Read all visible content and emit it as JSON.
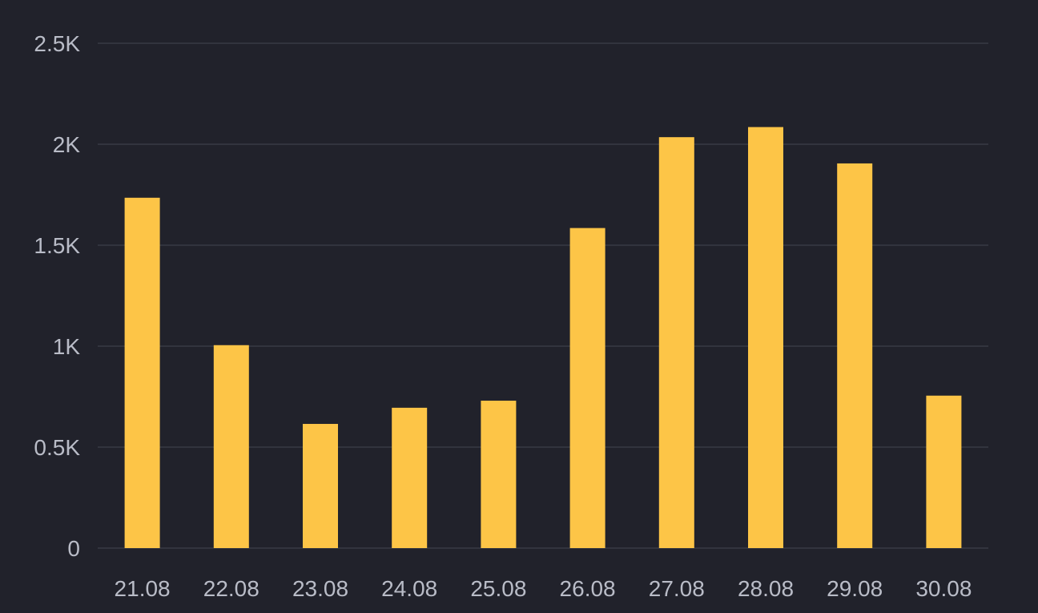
{
  "chart_data": {
    "type": "bar",
    "title": "",
    "xlabel": "",
    "ylabel": "",
    "categories": [
      "21.08",
      "22.08",
      "23.08",
      "24.08",
      "25.08",
      "26.08",
      "27.08",
      "28.08",
      "29.08",
      "30.08"
    ],
    "values": [
      1735,
      1005,
      615,
      695,
      730,
      1585,
      2035,
      2085,
      1905,
      755
    ],
    "ylim": [
      0,
      2500
    ],
    "yticks": [
      0,
      500,
      1000,
      1500,
      2000,
      2500
    ],
    "ytick_labels": [
      "0",
      "0.5K",
      "1K",
      "1.5K",
      "2K",
      "2.5K"
    ],
    "grid": true,
    "legend": "none",
    "colors": {
      "bar": "#fdc547",
      "background": "#21222b",
      "grid": "#383a44",
      "axis_text": "#b9bcc7"
    }
  }
}
